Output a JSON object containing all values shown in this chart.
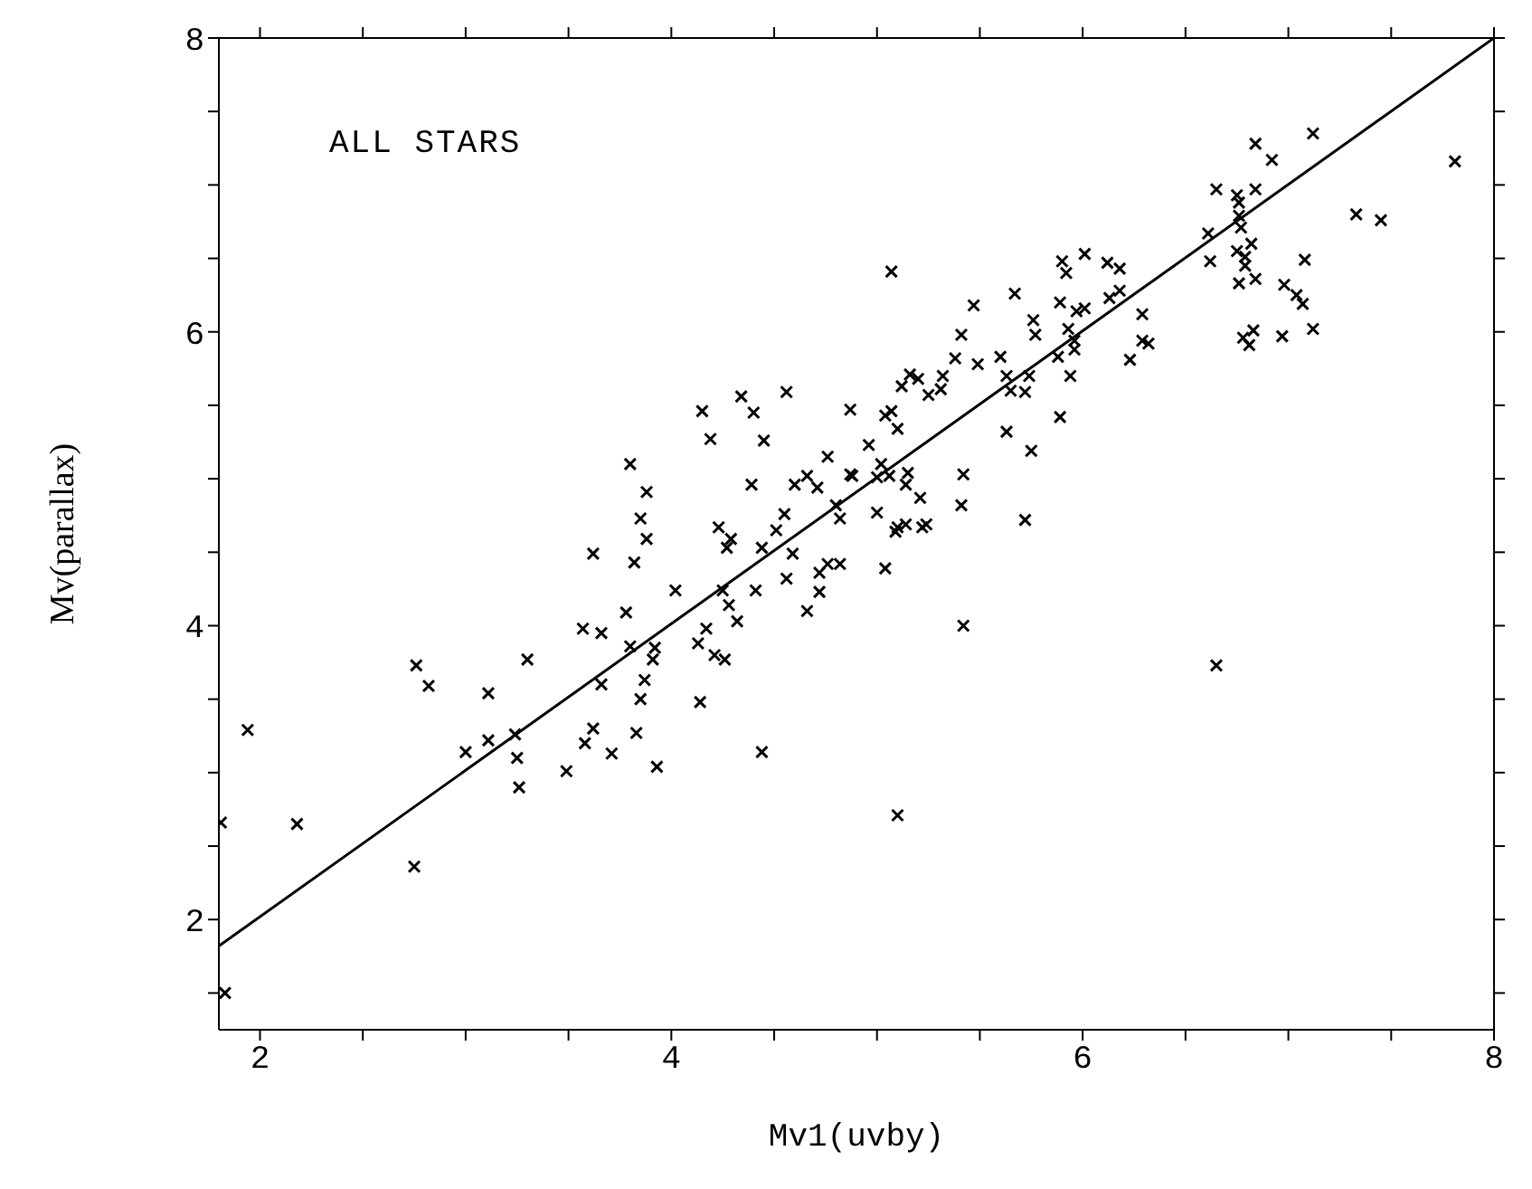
{
  "chart_data": {
    "type": "scatter",
    "xlabel": "Mv1(uvby)",
    "ylabel": "Mv(parallax)",
    "annotations": [
      "ALL STARS"
    ],
    "xlim": [
      1.8,
      8
    ],
    "ylim": [
      1.25,
      8
    ],
    "xticks": [
      2,
      {
        "value": 2.5,
        "label": null
      },
      {
        "value": 3,
        "label": null
      },
      {
        "value": 3.5,
        "label": null
      },
      4,
      {
        "value": 4.5,
        "label": null
      },
      {
        "value": 5,
        "label": null
      },
      {
        "value": 5.5,
        "label": null
      },
      6,
      {
        "value": 6.5,
        "label": null
      },
      {
        "value": 7,
        "label": null
      },
      {
        "value": 7.5,
        "label": null
      },
      8
    ],
    "yticks": [
      {
        "value": 1.5,
        "label": null
      },
      2,
      {
        "value": 2.5,
        "label": null
      },
      {
        "value": 3,
        "label": null
      },
      {
        "value": 3.5,
        "label": null
      },
      4,
      {
        "value": 4.5,
        "label": null
      },
      {
        "value": 5,
        "label": null
      },
      {
        "value": 5.5,
        "label": null
      },
      6,
      {
        "value": 6.5,
        "label": null
      },
      {
        "value": 7,
        "label": null
      },
      {
        "value": 7.5,
        "label": null
      },
      8
    ],
    "series": [
      {
        "marker": "cross",
        "color": "#000000",
        "x": [
          1.83,
          1.81,
          1.94,
          2.18,
          2.75,
          2.76,
          2.82,
          3.0,
          3.11,
          3.11,
          3.24,
          3.25,
          3.26,
          3.3,
          3.49,
          3.57,
          3.58,
          3.62,
          3.62,
          3.66,
          3.66,
          3.71,
          3.78,
          3.8,
          3.82,
          3.83,
          3.85,
          3.85,
          3.87,
          3.88,
          3.91,
          3.92,
          3.93,
          4.02,
          4.13,
          4.14,
          4.17,
          4.21,
          4.23,
          4.25,
          4.26,
          4.27,
          4.28,
          4.29,
          4.32,
          4.41,
          4.44,
          4.44,
          4.51,
          4.55,
          4.56,
          4.59,
          4.66,
          4.72,
          4.72,
          4.76,
          4.82,
          4.8,
          4.82,
          3.8,
          3.88,
          4.15,
          4.19,
          4.34,
          4.4,
          4.45,
          4.56,
          4.39,
          4.6,
          4.66,
          4.71,
          4.76,
          4.87,
          4.87,
          7.12,
          7.81,
          6.84,
          6.92,
          6.65,
          6.75,
          6.76,
          6.84,
          6.76,
          6.77,
          6.61,
          7.33,
          7.45,
          6.82,
          6.75,
          6.62,
          6.79,
          6.79,
          7.08,
          6.76,
          6.84,
          6.98,
          7.04,
          7.07,
          6.78,
          6.83,
          6.81,
          6.97,
          7.12,
          5.07,
          5.9,
          5.92,
          6.01,
          6.12,
          6.18,
          6.13,
          6.18,
          6.29,
          5.47,
          5.67,
          5.89,
          5.97,
          6.01,
          5.76,
          5.77,
          5.41,
          5.93,
          5.96,
          5.96,
          5.88,
          6.29,
          6.32,
          6.23,
          5.38,
          5.49,
          5.6,
          5.63,
          5.74,
          5.94,
          5.16,
          5.2,
          5.32,
          5.12,
          5.31,
          5.25,
          5.65,
          5.72,
          5.04,
          5.07,
          5.1,
          5.63,
          5.89,
          4.96,
          5.02,
          4.88,
          5.0,
          5.06,
          5.15,
          5.14,
          5.42,
          5.75,
          5.21,
          5.41,
          5.0,
          5.72,
          5.1,
          5.14,
          5.22,
          5.24,
          5.09,
          5.04,
          5.42,
          5.1,
          6.65
        ],
        "values": [
          1.5,
          2.66,
          3.29,
          2.65,
          2.36,
          3.73,
          3.59,
          3.14,
          3.54,
          3.22,
          3.26,
          3.1,
          2.9,
          3.77,
          3.01,
          3.98,
          3.2,
          3.3,
          4.49,
          3.6,
          3.95,
          3.13,
          4.09,
          3.86,
          4.43,
          3.27,
          4.73,
          3.5,
          3.63,
          4.59,
          3.77,
          3.85,
          3.04,
          4.24,
          3.88,
          3.48,
          3.98,
          3.8,
          4.67,
          4.24,
          3.77,
          4.53,
          4.14,
          4.59,
          4.03,
          4.24,
          4.53,
          3.14,
          4.65,
          4.76,
          4.32,
          4.49,
          4.1,
          4.36,
          4.23,
          4.42,
          4.42,
          4.82,
          4.73,
          5.1,
          4.91,
          5.46,
          5.27,
          5.56,
          5.45,
          5.26,
          5.59,
          4.96,
          4.96,
          5.02,
          4.94,
          5.15,
          5.47,
          5.03,
          7.35,
          7.16,
          7.28,
          7.17,
          6.97,
          6.93,
          6.88,
          6.97,
          6.79,
          6.71,
          6.67,
          6.8,
          6.76,
          6.6,
          6.55,
          6.48,
          6.51,
          6.45,
          6.49,
          6.33,
          6.36,
          6.32,
          6.25,
          6.19,
          5.96,
          6.01,
          5.91,
          5.97,
          6.02,
          6.41,
          6.48,
          6.4,
          6.53,
          6.47,
          6.43,
          6.23,
          6.28,
          6.12,
          6.18,
          6.26,
          6.2,
          6.14,
          6.16,
          6.08,
          5.98,
          5.98,
          6.02,
          5.94,
          5.88,
          5.83,
          5.94,
          5.92,
          5.81,
          5.82,
          5.78,
          5.83,
          5.7,
          5.7,
          5.7,
          5.71,
          5.68,
          5.7,
          5.63,
          5.61,
          5.57,
          5.6,
          5.59,
          5.43,
          5.46,
          5.34,
          5.32,
          5.42,
          5.23,
          5.1,
          5.02,
          5.01,
          5.02,
          5.04,
          4.96,
          5.03,
          5.19,
          4.87,
          4.82,
          4.77,
          4.72,
          4.67,
          4.69,
          4.67,
          4.69,
          4.64,
          4.39,
          4.0,
          2.71,
          3.73
        ]
      },
      {
        "type": "line",
        "color": "#000000",
        "x": [
          1.8,
          8
        ],
        "values": [
          1.82,
          8
        ]
      }
    ]
  }
}
